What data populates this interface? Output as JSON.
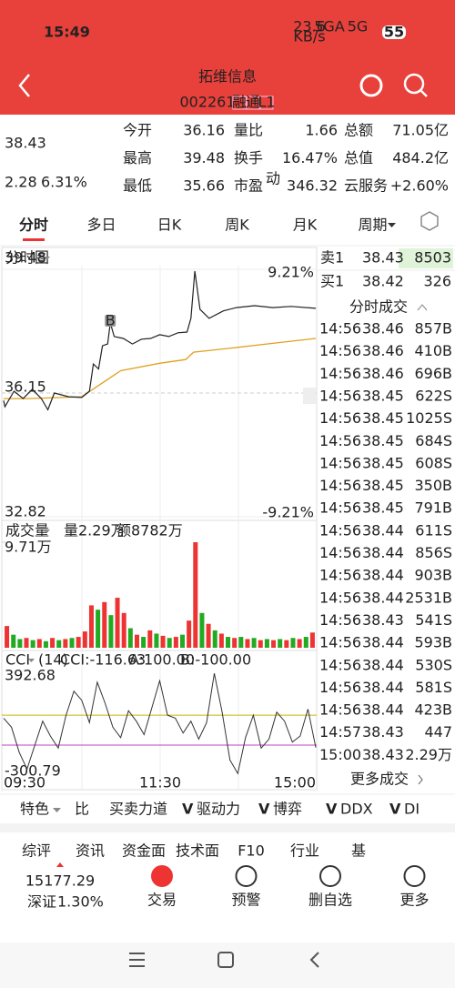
{
  "status_bar": {
    "time": "15:49",
    "net_speed": "23.6",
    "net_unit": "KB/s",
    "signal1": "5GA",
    "signal2": "5G",
    "battery": "55"
  },
  "header": {
    "title": "拓维信息",
    "code": "002261",
    "badges": [
      "融",
      "通",
      "L1"
    ]
  },
  "quote": {
    "price": "38.43",
    "change": "2.28",
    "change_pct": "6.31%",
    "stats": [
      [
        {
          "label": "今开",
          "value": "36.16"
        },
        {
          "label": "量比",
          "value": "1.66"
        },
        {
          "label": "总额",
          "value": "71.05亿"
        }
      ],
      [
        {
          "label": "最高",
          "value": "39.48"
        },
        {
          "label": "换手",
          "value": "16.47%"
        },
        {
          "label": "总值",
          "value": "484.2亿"
        }
      ],
      [
        {
          "label": "最低",
          "value": "35.66"
        },
        {
          "label": "市盈",
          "sup": "动",
          "value": "346.32"
        },
        {
          "label": "云服务",
          "value": "+2.60%"
        }
      ]
    ]
  },
  "tabs": {
    "items": [
      "分时",
      "多日",
      "日K",
      "周K",
      "月K",
      "周期"
    ],
    "selected": 0
  },
  "intraday": {
    "label": "分时图",
    "ylim": [
      32.82,
      39.48
    ],
    "yticks": [
      32.82,
      36.15,
      39.48
    ],
    "pct_max": "9.21%",
    "pct_min": "-9.21%",
    "price": {
      "x": [
        0,
        1,
        8,
        15,
        22,
        29,
        34,
        39,
        50,
        60,
        66,
        69,
        73,
        76,
        80,
        82,
        85,
        92,
        99,
        106,
        113,
        120,
        127,
        134,
        141,
        144,
        147,
        151,
        158,
        169,
        179,
        193,
        207,
        221,
        240
      ],
      "values": [
        35.95,
        35.78,
        36.2,
        36.0,
        36.25,
        36.0,
        35.7,
        36.15,
        36.05,
        36.03,
        36.2,
        36.93,
        36.8,
        37.42,
        37.47,
        38.04,
        37.67,
        37.62,
        37.47,
        37.6,
        37.62,
        37.72,
        37.67,
        37.77,
        37.79,
        38.16,
        39.43,
        38.4,
        38.16,
        38.36,
        38.45,
        38.5,
        38.45,
        38.48,
        38.43
      ]
    },
    "avg": {
      "x": [
        0,
        20,
        60,
        75,
        90,
        120,
        140,
        146,
        180,
        210,
        240
      ],
      "values": [
        36.0,
        36.0,
        36.05,
        36.4,
        36.75,
        36.95,
        37.05,
        37.25,
        37.38,
        37.5,
        37.62
      ]
    },
    "b_marker": {
      "label": "B",
      "x": 82
    },
    "time_labels": [
      "09:30",
      "11:30",
      "15:00"
    ]
  },
  "volume": {
    "label": "成交量",
    "vol": "量2.29万",
    "amount": "额8782万",
    "ylim": [
      0,
      9.71
    ],
    "yticks": [
      {
        "value": 9.71,
        "label": "9.71万"
      }
    ],
    "values": [
      2.0,
      1.2,
      0.8,
      0.9,
      0.7,
      0.8,
      0.6,
      0.9,
      0.7,
      0.8,
      0.9,
      1.0,
      1.5,
      3.9,
      3.5,
      4.2,
      3.0,
      4.6,
      3.2,
      1.8,
      1.2,
      1.0,
      1.6,
      1.3,
      1.1,
      0.9,
      1.0,
      1.2,
      2.5,
      9.71,
      3.2,
      2.2,
      1.6,
      1.3,
      1.0,
      0.9,
      1.0,
      0.8,
      0.9,
      0.7,
      0.8,
      0.7,
      0.8,
      0.7,
      0.9,
      0.8,
      1.0,
      1.4
    ],
    "colors": [
      "#e33",
      "#2a2",
      "#2a2",
      "#e33",
      "#2a2",
      "#e33",
      "#2a2",
      "#e33",
      "#2a2",
      "#e33",
      "#2a2",
      "#e33",
      "#e33",
      "#e33",
      "#2a2",
      "#e33",
      "#2a2",
      "#e33",
      "#e33",
      "#2a2",
      "#e33",
      "#2a2",
      "#e33",
      "#2a2",
      "#e33",
      "#2a2",
      "#e33",
      "#2a2",
      "#e33",
      "#e33",
      "#2a2",
      "#e33",
      "#2a2",
      "#e33",
      "#2a2",
      "#e33",
      "#2a2",
      "#e33",
      "#2a2",
      "#e33",
      "#2a2",
      "#e33",
      "#2a2",
      "#e33",
      "#2a2",
      "#e33",
      "#2a2",
      "#e33"
    ]
  },
  "cci": {
    "label": "CCI",
    "period": "(14)",
    "cci": "CCI:-116.63",
    "a": "A:100.00",
    "b": "B:-100.00",
    "ylim": [
      -300.79,
      392.68
    ],
    "yticks": [
      -300.79,
      392.68
    ],
    "ref_lines": [
      100,
      -100
    ],
    "x": [
      0,
      6,
      12,
      18,
      24,
      30,
      36,
      42,
      48,
      54,
      60,
      66,
      72,
      78,
      84,
      90,
      96,
      102,
      108,
      114,
      120,
      126,
      132,
      138,
      144,
      150,
      156,
      162,
      168,
      174,
      180,
      186,
      192,
      198,
      204,
      210,
      216,
      222,
      228,
      234,
      240
    ],
    "values": [
      80,
      20,
      -150,
      -260,
      -100,
      60,
      -40,
      -120,
      100,
      260,
      200,
      50,
      320,
      180,
      20,
      -50,
      130,
      60,
      -30,
      150,
      330,
      100,
      80,
      -20,
      60,
      -60,
      50,
      380,
      120,
      -200,
      -290,
      -50,
      100,
      -120,
      -60,
      120,
      60,
      -80,
      -40,
      140,
      -116.63
    ]
  },
  "order_book": [
    {
      "side": "卖1",
      "price": "38.43",
      "volume": "8503"
    },
    {
      "side": "买1",
      "price": "38.42",
      "volume": "326"
    }
  ],
  "trades": {
    "title": "分时成交",
    "more": "更多成交",
    "rows": [
      [
        "14:56",
        "38.46",
        "857B"
      ],
      [
        "14:56",
        "38.46",
        "410B"
      ],
      [
        "14:56",
        "38.46",
        "696B"
      ],
      [
        "14:56",
        "38.45",
        "622S"
      ],
      [
        "14:56",
        "38.45",
        "1025S"
      ],
      [
        "14:56",
        "38.45",
        "684S"
      ],
      [
        "14:56",
        "38.45",
        "608S"
      ],
      [
        "14:56",
        "38.45",
        "350B"
      ],
      [
        "14:56",
        "38.45",
        "791B"
      ],
      [
        "14:56",
        "38.44",
        "611S"
      ],
      [
        "14:56",
        "38.44",
        "856S"
      ],
      [
        "14:56",
        "38.44",
        "903B"
      ],
      [
        "14:56",
        "38.44",
        "2531B"
      ],
      [
        "14:56",
        "38.43",
        "541S"
      ],
      [
        "14:56",
        "38.44",
        "593B"
      ],
      [
        "14:56",
        "38.44",
        "530S"
      ],
      [
        "14:56",
        "38.44",
        "581S"
      ],
      [
        "14:56",
        "38.44",
        "423B"
      ],
      [
        "14:57",
        "38.43",
        "447"
      ],
      [
        "15:00",
        "38.43",
        "2.29万"
      ]
    ]
  },
  "indicators": [
    {
      "text": "特色"
    },
    {
      "text": "比"
    },
    {
      "text": "买卖力道"
    },
    {
      "prefix": "V",
      "text": "驱动力"
    },
    {
      "prefix": "V",
      "text": "博弈"
    },
    {
      "prefix": "V",
      "text": "DDX"
    },
    {
      "prefix": "V",
      "text": "DI"
    }
  ],
  "sub_tabs": {
    "items": [
      "综评",
      "资讯",
      "资金面",
      "技术面",
      "F10",
      "行业",
      "基"
    ],
    "selected": 2
  },
  "bottom_nav": {
    "index_value": "15177.29",
    "index_name": "深证",
    "index_change": "1.30%",
    "items": [
      "交易",
      "预警",
      "删自选",
      "更多"
    ]
  }
}
